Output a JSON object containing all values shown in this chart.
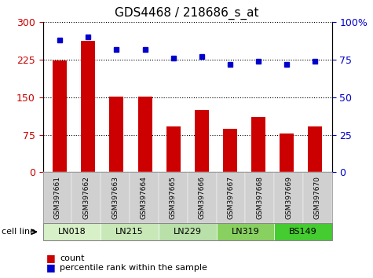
{
  "title": "GDS4468 / 218686_s_at",
  "samples": [
    "GSM397661",
    "GSM397662",
    "GSM397663",
    "GSM397664",
    "GSM397665",
    "GSM397666",
    "GSM397667",
    "GSM397668",
    "GSM397669",
    "GSM397670"
  ],
  "count_values": [
    224,
    263,
    152,
    152,
    92,
    125,
    87,
    110,
    78,
    92
  ],
  "percentile_values": [
    88,
    90,
    82,
    82,
    76,
    77,
    72,
    74,
    72,
    74
  ],
  "cell_lines": [
    {
      "name": "LN018",
      "samples": [
        0,
        1
      ],
      "color": "#d8f0c8"
    },
    {
      "name": "LN215",
      "samples": [
        2,
        3
      ],
      "color": "#c8e8b8"
    },
    {
      "name": "LN229",
      "samples": [
        4,
        5
      ],
      "color": "#b8e0a8"
    },
    {
      "name": "LN319",
      "samples": [
        6,
        7
      ],
      "color": "#88d060"
    },
    {
      "name": "BS149",
      "samples": [
        8,
        9
      ],
      "color": "#44cc30"
    }
  ],
  "ylim_left": [
    0,
    300
  ],
  "ylim_right": [
    0,
    100
  ],
  "yticks_left": [
    0,
    75,
    150,
    225,
    300
  ],
  "yticks_right": [
    0,
    25,
    50,
    75,
    100
  ],
  "ytick_left_labels": [
    "0",
    "75",
    "150",
    "225",
    "300"
  ],
  "ytick_right_labels": [
    "0",
    "25",
    "50",
    "75",
    "100%"
  ],
  "bar_color": "#cc0000",
  "dot_color": "#0000cc",
  "tick_bg": "#d0d0d0",
  "title_fontsize": 11,
  "legend_count_color": "#cc0000",
  "legend_dot_color": "#0000cc"
}
